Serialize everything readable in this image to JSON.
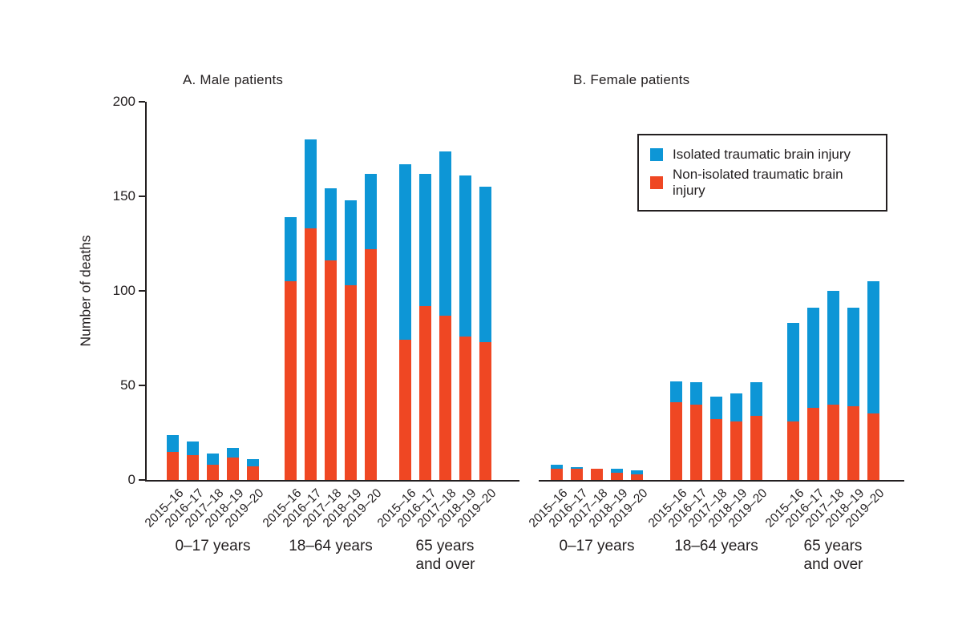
{
  "chart_data": {
    "type": "bar",
    "stacked": true,
    "ylabel": "Number of deaths",
    "ylim": [
      0,
      200
    ],
    "yticks": [
      0,
      50,
      100,
      150,
      200
    ],
    "grid": false,
    "legend_position": "top-right",
    "years": [
      "2015–16",
      "2016–17",
      "2017–18",
      "2018–19",
      "2019–20"
    ],
    "age_groups": [
      "0–17 years",
      "18–64 years",
      "65 years\nand over"
    ],
    "series": [
      {
        "name": "Isolated traumatic brain injury",
        "key": "isolated",
        "color": "#0d96d6"
      },
      {
        "name": "Non-isolated traumatic brain injury",
        "key": "non_isolated",
        "color": "#ef4723"
      }
    ],
    "panels": [
      {
        "id": "male",
        "title": "A. Male patients",
        "groups": [
          {
            "label": "0–17 years",
            "bars": [
              {
                "year": "2015–16",
                "non_isolated": 15,
                "isolated": 9
              },
              {
                "year": "2016–17",
                "non_isolated": 13,
                "isolated": 7
              },
              {
                "year": "2017–18",
                "non_isolated": 8,
                "isolated": 6
              },
              {
                "year": "2018–19",
                "non_isolated": 12,
                "isolated": 5
              },
              {
                "year": "2019–20",
                "non_isolated": 7,
                "isolated": 4
              }
            ]
          },
          {
            "label": "18–64 years",
            "bars": [
              {
                "year": "2015–16",
                "non_isolated": 105,
                "isolated": 34
              },
              {
                "year": "2016–17",
                "non_isolated": 133,
                "isolated": 47
              },
              {
                "year": "2017–18",
                "non_isolated": 116,
                "isolated": 38
              },
              {
                "year": "2018–19",
                "non_isolated": 103,
                "isolated": 45
              },
              {
                "year": "2019–20",
                "non_isolated": 122,
                "isolated": 40
              }
            ]
          },
          {
            "label": "65 years\nand over",
            "bars": [
              {
                "year": "2015–16",
                "non_isolated": 74,
                "isolated": 93
              },
              {
                "year": "2016–17",
                "non_isolated": 92,
                "isolated": 70
              },
              {
                "year": "2017–18",
                "non_isolated": 87,
                "isolated": 87
              },
              {
                "year": "2018–19",
                "non_isolated": 76,
                "isolated": 85
              },
              {
                "year": "2019–20",
                "non_isolated": 73,
                "isolated": 82
              }
            ]
          }
        ]
      },
      {
        "id": "female",
        "title": "B. Female patients",
        "groups": [
          {
            "label": "0–17 years",
            "bars": [
              {
                "year": "2015–16",
                "non_isolated": 6,
                "isolated": 2
              },
              {
                "year": "2016–17",
                "non_isolated": 6,
                "isolated": 1
              },
              {
                "year": "2017–18",
                "non_isolated": 6,
                "isolated": 0
              },
              {
                "year": "2018–19",
                "non_isolated": 4,
                "isolated": 2
              },
              {
                "year": "2019–20",
                "non_isolated": 3,
                "isolated": 2
              }
            ]
          },
          {
            "label": "18–64 years",
            "bars": [
              {
                "year": "2015–16",
                "non_isolated": 41,
                "isolated": 11
              },
              {
                "year": "2016–17",
                "non_isolated": 40,
                "isolated": 12
              },
              {
                "year": "2017–18",
                "non_isolated": 32,
                "isolated": 12
              },
              {
                "year": "2018–19",
                "non_isolated": 31,
                "isolated": 15
              },
              {
                "year": "2019–20",
                "non_isolated": 34,
                "isolated": 18
              }
            ]
          },
          {
            "label": "65 years\nand over",
            "bars": [
              {
                "year": "2015–16",
                "non_isolated": 31,
                "isolated": 52
              },
              {
                "year": "2016–17",
                "non_isolated": 38,
                "isolated": 53
              },
              {
                "year": "2017–18",
                "non_isolated": 40,
                "isolated": 60
              },
              {
                "year": "2018–19",
                "non_isolated": 39,
                "isolated": 52
              },
              {
                "year": "2019–20",
                "non_isolated": 35,
                "isolated": 70
              }
            ]
          }
        ]
      }
    ],
    "legend": {
      "items": [
        {
          "label": "Isolated traumatic brain injury",
          "color": "#0d96d6"
        },
        {
          "label": "Non-isolated traumatic brain injury",
          "color": "#ef4723"
        }
      ]
    }
  }
}
